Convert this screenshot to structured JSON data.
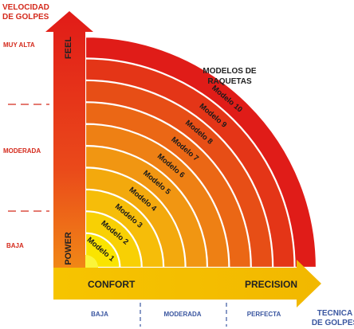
{
  "y_axis": {
    "title_line1": "VELOCIDAD",
    "title_line2": "DE GOLPES",
    "levels": [
      "MUY ALTA",
      "MODERADA",
      "BAJA"
    ],
    "arrow_top_label": "FEEL",
    "arrow_bottom_label": "POWER"
  },
  "x_axis": {
    "title_line1": "TECNICA",
    "title_line2": "DE GOLPES",
    "levels": [
      "BAJA",
      "MODERADA",
      "PERFECTA"
    ],
    "arrow_left_label": "CONFORT",
    "arrow_right_label": "PRECISION"
  },
  "models_title_line1": "MODELOS DE",
  "models_title_line2": "RAQUETAS",
  "models": [
    "Modelo 1",
    "Modelo 2",
    "Modelo 3",
    "Modelo 4",
    "Modelo 5",
    "Modelo 6",
    "Modelo 7",
    "Modelo 8",
    "Modelo 9",
    "Modelo 10"
  ],
  "colors": {
    "axis_label": "#d42a1c",
    "x_level": "#3a56a0",
    "vertical_arrow": "#e31d1a",
    "horizontal_arrow": "#f5c400",
    "ring_inner": "#f7e600",
    "ring_outer": "#e01c18",
    "text_dark": "#222222"
  }
}
